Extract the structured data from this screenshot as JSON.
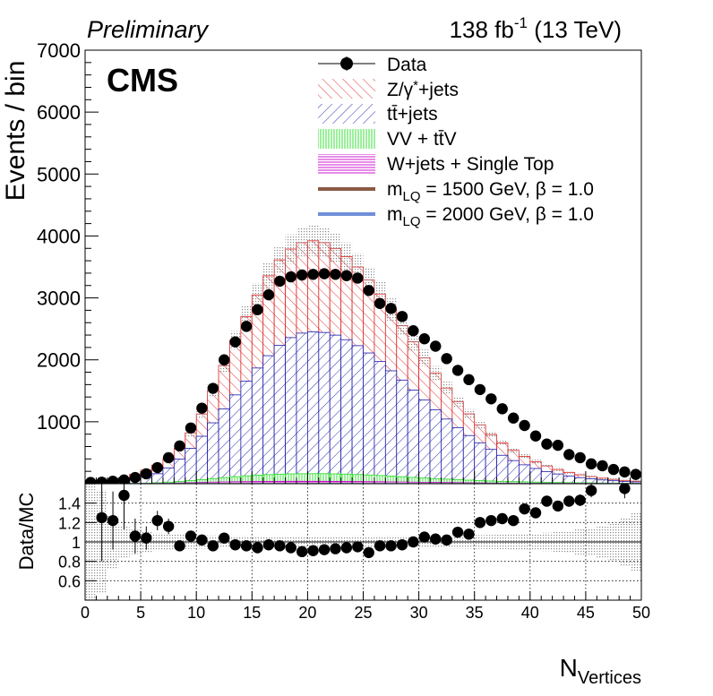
{
  "header": {
    "prelim": "Preliminary",
    "lumi_value": "138 fb",
    "lumi_exp": "-1",
    "lumi_energy": " (13 TeV)",
    "experiment": "CMS"
  },
  "legend": {
    "data": "Data",
    "z_pre": "Z/γ",
    "z_post": "+jets",
    "tt": "tt̄+jets",
    "vv": "VV + tt̄V",
    "wj": "W+jets + Single Top",
    "lq1_pre": "m",
    "lq1_sub": "LQ",
    "lq1_post": " = 1500 GeV, β = 1.0",
    "lq2_pre": "m",
    "lq2_sub": "LQ",
    "lq2_post": " = 2000 GeV, β = 1.0"
  },
  "axes": {
    "ylabel": "Events / bin",
    "ratio_ylabel": "Data/MC",
    "xlabel_main": "N",
    "xlabel_sub": "Vertices"
  },
  "colors": {
    "zjets": "#dd2222",
    "ttbar": "#1a1aaa",
    "vv": "#22dd22",
    "wjets": "#cc00cc",
    "lq1500": "#8b5a44",
    "lq2000": "#6f8fd8",
    "data": "#000000"
  },
  "chart_data": [
    {
      "type": "bar",
      "stacked": true,
      "log_y": false,
      "x_bin_edges_start": 0,
      "x_bin_width": 1,
      "xlim": [
        0,
        50
      ],
      "ylim": [
        0,
        7000
      ],
      "ylabel": "Events / bin",
      "yticks": [
        1000,
        2000,
        3000,
        4000,
        5000,
        6000,
        7000
      ],
      "series": [
        {
          "name": "W+jets + Single Top",
          "values": [
            0,
            0,
            0,
            1,
            2,
            3,
            5,
            8,
            12,
            16,
            20,
            25,
            29,
            32,
            34,
            36,
            37,
            38,
            39,
            39,
            39,
            39,
            38,
            37,
            36,
            34,
            32,
            30,
            28,
            25,
            23,
            21,
            19,
            17,
            15,
            13,
            11,
            10,
            9,
            8,
            7,
            6,
            5,
            5,
            4,
            4,
            3,
            3,
            2,
            2
          ]
        },
        {
          "name": "VV + tt̄V",
          "values": [
            0,
            0,
            1,
            2,
            4,
            7,
            11,
            17,
            25,
            35,
            46,
            58,
            70,
            82,
            93,
            102,
            110,
            116,
            120,
            122,
            123,
            123,
            121,
            118,
            113,
            107,
            100,
            93,
            85,
            77,
            70,
            62,
            55,
            49,
            43,
            38,
            33,
            29,
            25,
            22,
            19,
            16,
            14,
            12,
            10,
            9,
            8,
            7,
            6,
            5
          ]
        },
        {
          "name": "tt̄+jets",
          "values": [
            2,
            6,
            15,
            30,
            55,
            90,
            145,
            230,
            360,
            520,
            700,
            900,
            1110,
            1320,
            1530,
            1730,
            1920,
            2080,
            2200,
            2270,
            2290,
            2280,
            2240,
            2170,
            2080,
            1970,
            1840,
            1700,
            1560,
            1410,
            1260,
            1110,
            970,
            840,
            720,
            610,
            510,
            420,
            340,
            275,
            220,
            175,
            138,
            108,
            84,
            65,
            50,
            38,
            29,
            22
          ]
        },
        {
          "name": "Z/γ*+jets",
          "values": [
            5,
            15,
            30,
            55,
            90,
            120,
            140,
            150,
            180,
            250,
            360,
            520,
            700,
            880,
            1040,
            1180,
            1290,
            1380,
            1430,
            1460,
            1470,
            1450,
            1400,
            1340,
            1270,
            1180,
            1090,
            990,
            880,
            780,
            680,
            590,
            500,
            420,
            350,
            290,
            240,
            200,
            165,
            135,
            110,
            90,
            72,
            58,
            46,
            37,
            29,
            22,
            17,
            13
          ]
        }
      ],
      "data": {
        "name": "Data",
        "values": [
          20,
          25,
          40,
          60,
          100,
          160,
          260,
          420,
          610,
          900,
          1220,
          1540,
          2000,
          2290,
          2540,
          2810,
          3050,
          3270,
          3340,
          3370,
          3380,
          3390,
          3380,
          3360,
          3320,
          3120,
          2910,
          2830,
          2700,
          2470,
          2340,
          2220,
          2020,
          1830,
          1680,
          1520,
          1370,
          1210,
          1060,
          940,
          770,
          640,
          620,
          470,
          420,
          320,
          290,
          230,
          190,
          150
        ]
      },
      "signals": [
        {
          "name": "m_LQ = 1500 GeV, β = 1.0",
          "values": [
            0,
            0,
            0,
            0,
            0,
            0,
            0,
            0,
            0,
            0,
            0,
            0,
            0,
            0,
            0,
            0,
            0,
            0,
            0,
            0,
            0,
            0,
            0,
            0,
            0,
            0,
            0,
            0,
            0,
            0,
            0,
            0,
            0,
            0,
            0,
            0,
            0,
            0,
            0,
            0,
            0,
            0,
            0,
            0,
            0,
            0,
            0,
            0,
            0,
            0
          ]
        },
        {
          "name": "m_LQ = 2000 GeV, β = 1.0",
          "values": [
            0,
            0,
            0,
            0,
            0,
            0,
            0,
            0,
            0,
            0,
            0,
            0,
            0,
            0,
            0,
            0,
            0,
            0,
            0,
            0,
            0,
            0,
            0,
            0,
            0,
            0,
            0,
            0,
            0,
            0,
            0,
            0,
            0,
            0,
            0,
            0,
            0,
            0,
            0,
            0,
            0,
            0,
            0,
            0,
            0,
            0,
            0,
            0,
            0,
            0
          ]
        }
      ]
    },
    {
      "type": "scatter",
      "title": "",
      "ylabel": "Data/MC",
      "xlabel": "N_Vertices",
      "xlim": [
        0,
        50
      ],
      "ylim": [
        0.4,
        1.6
      ],
      "yticks": [
        0.6,
        0.8,
        1,
        1.2,
        1.4
      ],
      "xticks": [
        0,
        5,
        10,
        15,
        20,
        25,
        30,
        35,
        40,
        45,
        50
      ],
      "grid": true,
      "reference_line": 1,
      "x": [
        1.5,
        2.5,
        3.5,
        4.5,
        5.5,
        6.5,
        7.5,
        8.5,
        9.5,
        10.5,
        11.5,
        12.5,
        13.5,
        14.5,
        15.5,
        16.5,
        17.5,
        18.5,
        19.5,
        20.5,
        21.5,
        22.5,
        23.5,
        24.5,
        25.5,
        26.5,
        27.5,
        28.5,
        29.5,
        30.5,
        31.5,
        32.5,
        33.5,
        34.5,
        35.5,
        36.5,
        37.5,
        38.5,
        39.5,
        40.5,
        41.5,
        42.5,
        43.5,
        44.5,
        45.5,
        48.5
      ],
      "y": [
        1.25,
        1.22,
        1.48,
        1.06,
        1.04,
        1.22,
        1.16,
        0.96,
        1.06,
        1.02,
        0.96,
        1.04,
        0.97,
        0.96,
        0.94,
        0.97,
        0.96,
        0.94,
        0.9,
        0.91,
        0.92,
        0.93,
        0.94,
        0.95,
        0.89,
        0.96,
        0.96,
        0.97,
        1.0,
        1.05,
        1.03,
        1.02,
        1.1,
        1.08,
        1.2,
        1.22,
        1.24,
        1.22,
        1.34,
        1.3,
        1.42,
        1.37,
        1.42,
        1.43,
        1.53,
        1.55
      ],
      "yerr": [
        0.45,
        0.3,
        0.35,
        0.18,
        0.12,
        0.1,
        0.08,
        0.05,
        0.04,
        0.03,
        0.03,
        0.02,
        0.02,
        0.02,
        0.02,
        0.02,
        0.02,
        0.02,
        0.02,
        0.02,
        0.02,
        0.02,
        0.02,
        0.02,
        0.02,
        0.02,
        0.02,
        0.02,
        0.02,
        0.02,
        0.02,
        0.02,
        0.03,
        0.03,
        0.03,
        0.03,
        0.03,
        0.04,
        0.04,
        0.04,
        0.05,
        0.05,
        0.05,
        0.06,
        0.07,
        0.1
      ]
    }
  ]
}
